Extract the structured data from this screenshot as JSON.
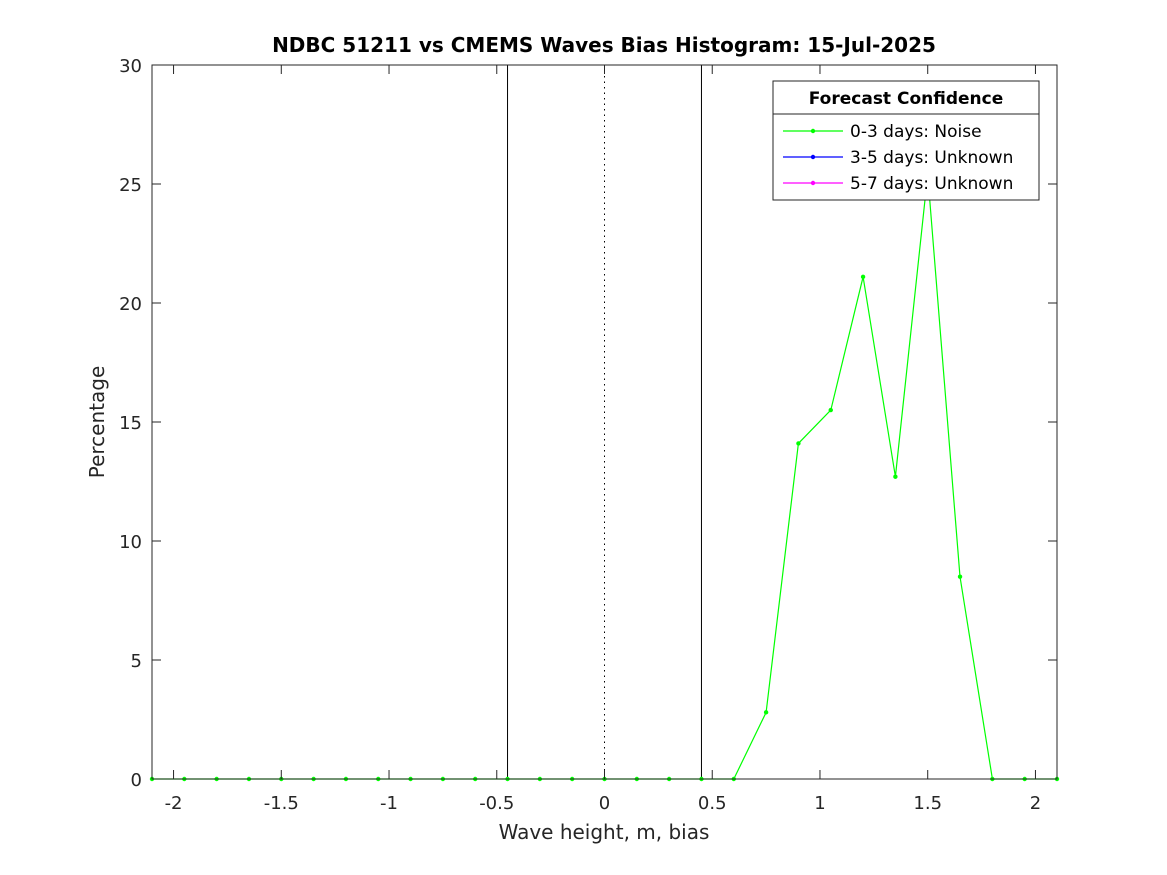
{
  "chart_data": {
    "type": "line",
    "title": "NDBC 51211 vs CMEMS Waves Bias Histogram: 15-Jul-2025",
    "xlabel": "Wave height, m, bias",
    "ylabel": "Percentage",
    "xlim": [
      -2.1,
      2.1
    ],
    "ylim": [
      0,
      30
    ],
    "xticks": [
      -2,
      -1.5,
      -1,
      -0.5,
      0,
      0.5,
      1,
      1.5,
      2
    ],
    "xtick_labels": [
      "-2",
      "-1.5",
      "-1",
      "-0.5",
      "0",
      "0.5",
      "1",
      "1.5",
      "2"
    ],
    "yticks": [
      0,
      5,
      10,
      15,
      20,
      25,
      30
    ],
    "ytick_labels": [
      "0",
      "5",
      "10",
      "15",
      "20",
      "25",
      "30"
    ],
    "grid": false,
    "reference_lines": [
      {
        "x": -0.45,
        "style": "solid",
        "color": "#000000"
      },
      {
        "x": 0,
        "style": "dotted",
        "color": "#000000"
      },
      {
        "x": 0.45,
        "style": "solid",
        "color": "#000000"
      }
    ],
    "legend": {
      "title": "Forecast Confidence",
      "placement": "top-right"
    },
    "series": [
      {
        "name": "0-3 days: Noise",
        "color": "#00ff00",
        "x": [
          -2.1,
          -1.95,
          -1.8,
          -1.65,
          -1.5,
          -1.35,
          -1.2,
          -1.05,
          -0.9,
          -0.75,
          -0.6,
          -0.45,
          -0.3,
          -0.15,
          0,
          0.15,
          0.3,
          0.45,
          0.6,
          0.75,
          0.9,
          1.05,
          1.2,
          1.35,
          1.5,
          1.65,
          1.8,
          1.95,
          2.1
        ],
        "values": [
          0,
          0,
          0,
          0,
          0,
          0,
          0,
          0,
          0,
          0,
          0,
          0,
          0,
          0,
          0,
          0,
          0,
          0,
          0,
          2.8,
          14.1,
          15.5,
          21.1,
          12.7,
          25.4,
          8.5,
          0,
          0,
          0
        ]
      },
      {
        "name": "3-5 days: Unknown",
        "color": "#0000ff",
        "x": [],
        "values": []
      },
      {
        "name": "5-7 days: Unknown",
        "color": "#ff00ff",
        "x": [],
        "values": []
      }
    ]
  }
}
